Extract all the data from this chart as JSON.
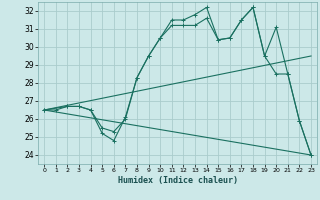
{
  "background_color": "#cce8e8",
  "grid_color": "#aacccc",
  "line_color": "#1a7060",
  "xlabel": "Humidex (Indice chaleur)",
  "xlim": [
    -0.5,
    23.5
  ],
  "ylim": [
    23.5,
    32.5
  ],
  "xticks": [
    0,
    1,
    2,
    3,
    4,
    5,
    6,
    7,
    8,
    9,
    10,
    11,
    12,
    13,
    14,
    15,
    16,
    17,
    18,
    19,
    20,
    21,
    22,
    23
  ],
  "yticks": [
    24,
    25,
    26,
    27,
    28,
    29,
    30,
    31,
    32
  ],
  "line1_x": [
    0,
    1,
    2,
    3,
    4,
    5,
    6,
    7,
    8,
    9,
    10,
    11,
    12,
    13,
    14,
    15,
    16,
    17,
    18,
    19,
    20,
    21,
    22,
    23
  ],
  "line1_y": [
    26.5,
    26.5,
    26.7,
    26.7,
    26.5,
    25.2,
    24.8,
    26.1,
    28.3,
    29.5,
    30.5,
    31.5,
    31.5,
    31.8,
    32.2,
    30.4,
    30.5,
    31.5,
    32.2,
    29.5,
    31.1,
    28.5,
    25.9,
    24.0
  ],
  "line2_x": [
    0,
    2,
    3,
    4,
    5,
    6,
    7,
    8,
    9,
    10,
    11,
    12,
    13,
    14,
    15,
    16,
    17,
    18,
    19,
    20,
    21,
    22,
    23
  ],
  "line2_y": [
    26.5,
    26.7,
    26.7,
    26.5,
    25.5,
    25.3,
    26.0,
    28.3,
    29.5,
    30.5,
    31.2,
    31.2,
    31.2,
    31.6,
    30.4,
    30.5,
    31.5,
    32.2,
    29.5,
    28.5,
    28.5,
    25.9,
    24.0
  ],
  "line3_x": [
    0,
    23
  ],
  "line3_y": [
    26.5,
    29.5
  ],
  "line4_x": [
    0,
    23
  ],
  "line4_y": [
    26.5,
    24.0
  ]
}
